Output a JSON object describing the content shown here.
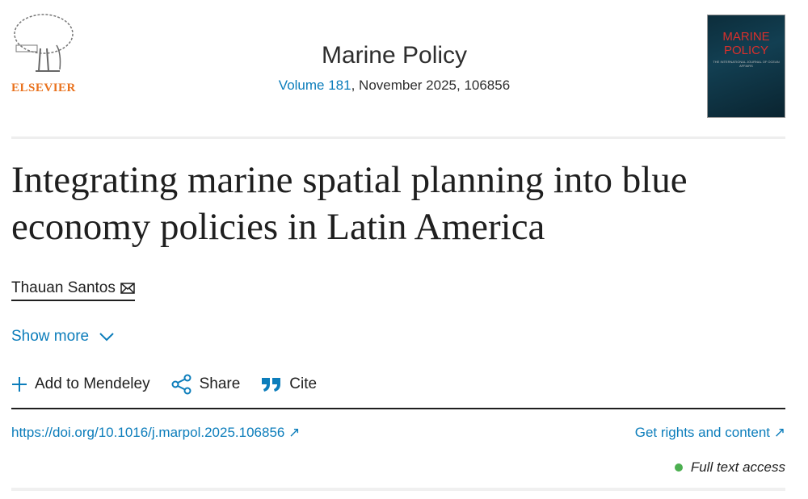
{
  "publisher": {
    "name": "ELSEVIER"
  },
  "journal": {
    "title": "Marine Policy",
    "volume_link": "Volume 181",
    "issue_info": ", November 2025, 106856",
    "cover": {
      "title": "MARINE POLICY",
      "subtitle": "THE INTERNATIONAL JOURNAL OF OCEAN AFFAIRS"
    }
  },
  "article": {
    "title": "Integrating marine spatial planning into blue economy policies in Latin America",
    "author": "Thauan Santos",
    "show_more": "Show more"
  },
  "actions": {
    "mendeley": "Add to Mendeley",
    "share": "Share",
    "cite": "Cite"
  },
  "links": {
    "doi": "https://doi.org/10.1016/j.marpol.2025.106856",
    "rights": "Get rights and content"
  },
  "access": {
    "label": "Full text access",
    "color": "#4caf50"
  },
  "colors": {
    "link": "#0c7dbb",
    "brand": "#e9711c"
  }
}
